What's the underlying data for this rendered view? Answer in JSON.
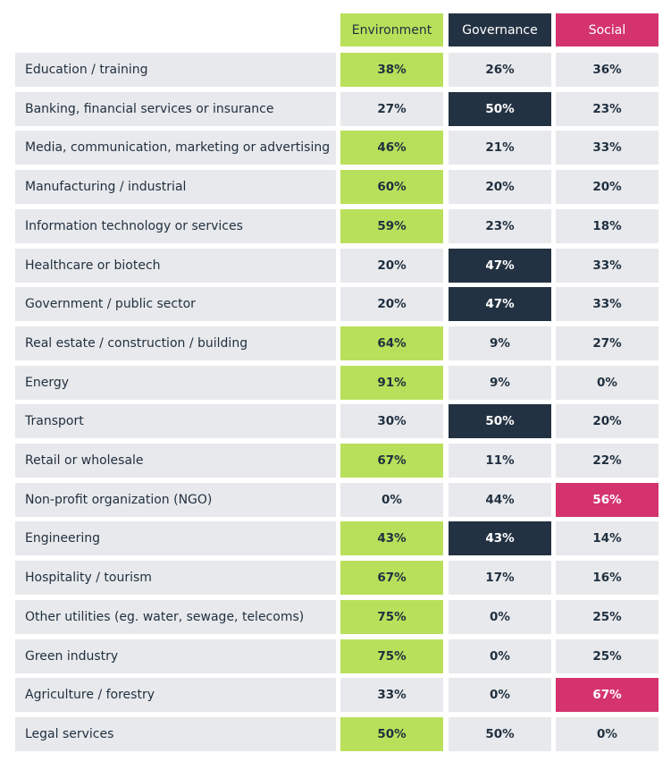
{
  "chart_data": {
    "type": "table",
    "columns": [
      "Environment",
      "Governance",
      "Social"
    ],
    "header_colors": {
      "Environment": "#b9e05a",
      "Governance": "#233242",
      "Social": "#d4336e"
    },
    "highlight_note_colors": {
      "neutral_cell": "#e8e9ec"
    },
    "rows": [
      {
        "label": "Education / training",
        "values": [
          "38%",
          "26%",
          "36%"
        ],
        "highlight": "Environment"
      },
      {
        "label": "Banking, financial services or insurance",
        "values": [
          "27%",
          "50%",
          "23%"
        ],
        "highlight": "Governance"
      },
      {
        "label": "Media, communication, marketing or advertising",
        "values": [
          "46%",
          "21%",
          "33%"
        ],
        "highlight": "Environment"
      },
      {
        "label": "Manufacturing / industrial",
        "values": [
          "60%",
          "20%",
          "20%"
        ],
        "highlight": "Environment"
      },
      {
        "label": "Information technology or services",
        "values": [
          "59%",
          "23%",
          "18%"
        ],
        "highlight": "Environment"
      },
      {
        "label": "Healthcare or biotech",
        "values": [
          "20%",
          "47%",
          "33%"
        ],
        "highlight": "Governance"
      },
      {
        "label": "Government / public sector",
        "values": [
          "20%",
          "47%",
          "33%"
        ],
        "highlight": "Governance"
      },
      {
        "label": "Real estate / construction / building",
        "values": [
          "64%",
          "9%",
          "27%"
        ],
        "highlight": "Environment"
      },
      {
        "label": "Energy",
        "values": [
          "91%",
          "9%",
          "0%"
        ],
        "highlight": "Environment"
      },
      {
        "label": "Transport",
        "values": [
          "30%",
          "50%",
          "20%"
        ],
        "highlight": "Governance"
      },
      {
        "label": "Retail or wholesale",
        "values": [
          "67%",
          "11%",
          "22%"
        ],
        "highlight": "Environment"
      },
      {
        "label": "Non-profit organization (NGO)",
        "values": [
          "0%",
          "44%",
          "56%"
        ],
        "highlight": "Social"
      },
      {
        "label": "Engineering",
        "values": [
          "43%",
          "43%",
          "14%"
        ],
        "highlight": [
          "Environment",
          "Governance"
        ]
      },
      {
        "label": "Hospitality / tourism",
        "values": [
          "67%",
          "17%",
          "16%"
        ],
        "highlight": "Environment"
      },
      {
        "label": "Other utilities (eg. water, sewage, telecoms)",
        "values": [
          "75%",
          "0%",
          "25%"
        ],
        "highlight": "Environment"
      },
      {
        "label": "Green industry",
        "values": [
          "75%",
          "0%",
          "25%"
        ],
        "highlight": "Environment"
      },
      {
        "label": "Agriculture / forestry",
        "values": [
          "33%",
          "0%",
          "67%"
        ],
        "highlight": "Social"
      },
      {
        "label": "Legal services",
        "values": [
          "50%",
          "50%",
          "0%"
        ],
        "highlight": "Environment"
      }
    ]
  }
}
